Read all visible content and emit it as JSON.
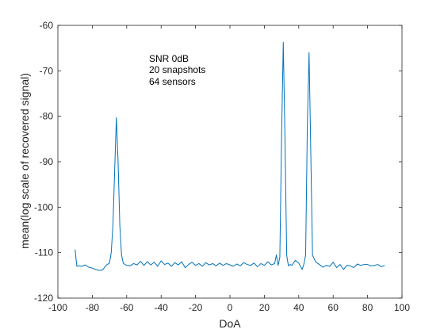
{
  "chart_data": {
    "type": "line",
    "title": "",
    "xlabel": "DoA",
    "ylabel": "mean(log scale of recovered signal)",
    "xlim": [
      -100,
      100
    ],
    "ylim": [
      -120,
      -60
    ],
    "xticks": [
      -100,
      -80,
      -60,
      -40,
      -20,
      0,
      20,
      40,
      60,
      80,
      100
    ],
    "yticks": [
      -120,
      -110,
      -100,
      -90,
      -80,
      -70,
      -60
    ],
    "grid": false,
    "legend": "none",
    "colors": {
      "line": "#0072BD",
      "axes": "#262626"
    },
    "annotation": [
      "SNR 0dB",
      "20 snapshots",
      "64 sensors"
    ],
    "series": [
      {
        "x": [
          -90,
          -89,
          -88,
          -86,
          -84,
          -82,
          -80,
          -78,
          -76,
          -74,
          -72,
          -70,
          -69,
          -68,
          -67,
          -66,
          -65,
          -64,
          -63,
          -62,
          -61,
          -60,
          -58,
          -56,
          -54,
          -52,
          -50,
          -48,
          -46,
          -44,
          -42,
          -40,
          -38,
          -36,
          -34,
          -32,
          -30,
          -28,
          -26,
          -24,
          -22,
          -20,
          -18,
          -16,
          -14,
          -12,
          -10,
          -8,
          -6,
          -4,
          -2,
          0,
          2,
          4,
          6,
          8,
          10,
          12,
          14,
          16,
          18,
          20,
          22,
          24,
          26,
          27,
          28,
          29,
          30,
          31,
          32,
          33,
          34,
          35,
          36,
          38,
          40,
          42,
          43,
          44,
          45,
          46,
          47,
          48,
          50,
          52,
          54,
          56,
          58,
          60,
          62,
          64,
          66,
          68,
          70,
          72,
          74,
          76,
          78,
          80,
          82,
          84,
          86,
          88,
          90
        ],
        "y": [
          -109.3,
          -113,
          -112.9,
          -113,
          -112.7,
          -113.2,
          -113.4,
          -113.7,
          -113.9,
          -113.8,
          -112.8,
          -112.3,
          -110,
          -104,
          -92,
          -80.3,
          -90,
          -104,
          -110.5,
          -112.3,
          -112.6,
          -112.8,
          -112.9,
          -112.4,
          -112.7,
          -111.9,
          -112.8,
          -112,
          -112.7,
          -112.1,
          -113,
          -111.8,
          -112.6,
          -112.3,
          -113,
          -112.2,
          -112.7,
          -112,
          -113.3,
          -112.6,
          -112.1,
          -112.8,
          -112.4,
          -113,
          -112.2,
          -112.7,
          -112.4,
          -112.9,
          -112.3,
          -112.8,
          -112.4,
          -112.7,
          -113,
          -112.5,
          -112.9,
          -112.2,
          -112.6,
          -112.8,
          -112.3,
          -113.1,
          -112.4,
          -112.8,
          -112,
          -112.7,
          -112.4,
          -110.5,
          -112.8,
          -111,
          -85,
          -63.7,
          -85,
          -110.6,
          -112.9,
          -112.6,
          -112.8,
          -111.7,
          -112.3,
          -113.7,
          -112.5,
          -110.5,
          -82,
          -66,
          -88,
          -110.6,
          -112.1,
          -112.6,
          -113.2,
          -112.8,
          -113,
          -112.1,
          -113.3,
          -112.6,
          -113.7,
          -112.8,
          -112.9,
          -113.3,
          -112.5,
          -112.8,
          -112.6,
          -112.6,
          -112.9,
          -112.8,
          -112.6,
          -113.1,
          -112.8
        ]
      }
    ]
  }
}
